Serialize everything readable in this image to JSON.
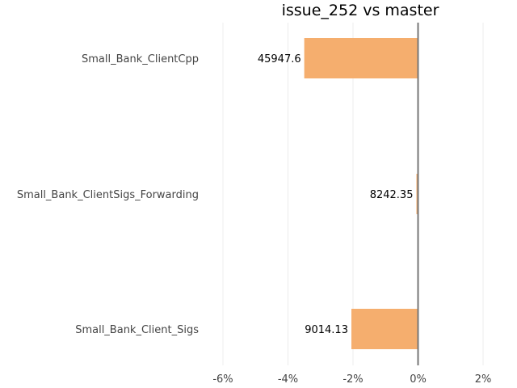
{
  "chart_data": {
    "type": "bar",
    "orientation": "horizontal",
    "title": "issue_252 vs master",
    "xlabel": "",
    "ylabel": "",
    "categories": [
      "Small_Bank_ClientCpp",
      "Small_Bank_ClientSigs_Forwarding",
      "Small_Bank_Client_Sigs"
    ],
    "values": [
      -3.5,
      -0.05,
      -2.05
    ],
    "value_labels": [
      "45947.6",
      "8242.35",
      "9014.13"
    ],
    "xlim": [
      -6,
      2
    ],
    "xticks": [
      -6,
      -4,
      -2,
      0,
      2
    ],
    "xtick_labels": [
      "-6%",
      "-4%",
      "-2%",
      "0%",
      "2%"
    ],
    "grid": true,
    "bar_color": "#f5ae6e",
    "zero_line_color": "#777777"
  }
}
